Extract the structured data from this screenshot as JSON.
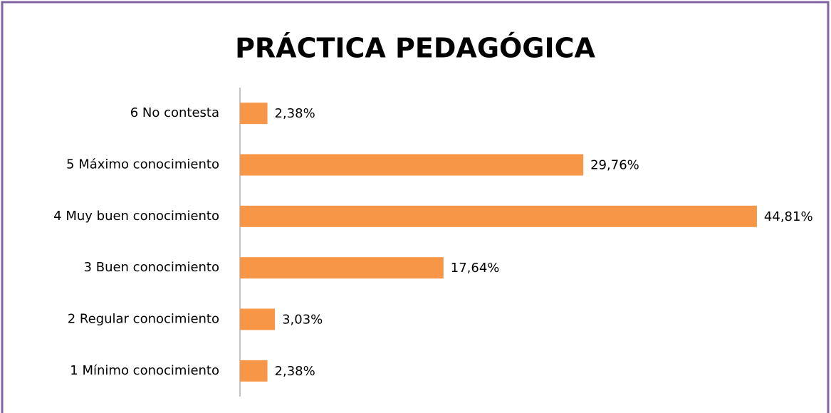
{
  "chart_data": {
    "type": "bar",
    "orientation": "horizontal",
    "title": "PRÁCTICA PEDAGÓGICA",
    "categories": [
      "6 No contesta",
      "5 Máximo conocimiento",
      "4 Muy buen conocimiento",
      "3 Buen conocimiento",
      "2 Regular conocimiento",
      "1 Mínimo conocimiento"
    ],
    "values": [
      2.38,
      29.76,
      44.81,
      17.64,
      3.03,
      2.38
    ],
    "value_labels": [
      "2,38%",
      "29,76%",
      "44,81%",
      "17,64%",
      "3,03%",
      "2,38%"
    ],
    "color": "#f79646"
  }
}
